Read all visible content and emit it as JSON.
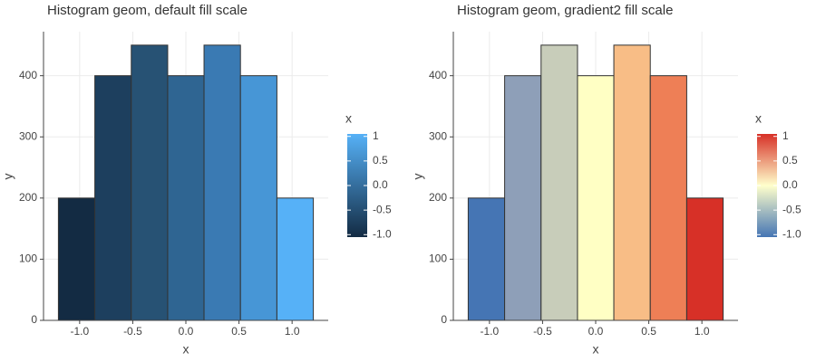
{
  "chart_data": [
    {
      "type": "histogram",
      "title": "Histogram geom, default fill scale",
      "x_label": "x",
      "y_label": "y",
      "bins": [
        -1.2,
        -0.857,
        -0.514,
        -0.171,
        0.171,
        0.514,
        0.857,
        1.2
      ],
      "values": [
        200,
        400,
        450,
        400,
        450,
        400,
        200
      ],
      "colors": [
        "#132b43",
        "#1d3f5e",
        "#275274",
        "#2f6592",
        "#3a7ab3",
        "#4796d6",
        "#56b1f7"
      ],
      "xlim": [
        -1.34,
        1.34
      ],
      "xticks": [
        {
          "value": -1,
          "label": "-1.0"
        },
        -0.5,
        {
          "value": 0,
          "label": "0.0"
        },
        0.5,
        {
          "value": 1,
          "label": "1.0"
        }
      ],
      "ylim": [
        0,
        472
      ],
      "yticks": [
        0,
        100,
        200,
        300,
        400
      ],
      "grid": true,
      "legend": {
        "title": "x",
        "colors": [
          "#132b43",
          "#56b1f7"
        ],
        "lim": [
          -1.05,
          1.05
        ],
        "ticks": [
          1,
          0.5,
          {
            "value": 0,
            "label": "0.0"
          },
          -0.5,
          {
            "value": -1,
            "label": "-1.0"
          }
        ]
      }
    },
    {
      "type": "histogram",
      "title": "Histogram geom, gradient2 fill scale",
      "x_label": "x",
      "y_label": "y",
      "bins": [
        -1.2,
        -0.857,
        -0.514,
        -0.171,
        0.171,
        0.514,
        0.857,
        1.2
      ],
      "values": [
        200,
        400,
        450,
        400,
        450,
        400,
        200
      ],
      "colors": [
        "#4575b4",
        "#8e9fb8",
        "#c8cdba",
        "#ffffc4",
        "#f8bd86",
        "#ee7f56",
        "#d73027"
      ],
      "xlim": [
        -1.34,
        1.34
      ],
      "xticks": [
        {
          "value": -1,
          "label": "-1.0"
        },
        -0.5,
        {
          "value": 0,
          "label": "0.0"
        },
        0.5,
        {
          "value": 1,
          "label": "1.0"
        }
      ],
      "ylim": [
        0,
        472
      ],
      "yticks": [
        0,
        100,
        200,
        300,
        400
      ],
      "grid": true,
      "legend": {
        "title": "x",
        "colors": [
          "#4575b4",
          "#ffffcc",
          "#d73027"
        ],
        "lim": [
          -1.05,
          1.05
        ],
        "ticks": [
          1,
          0.5,
          {
            "value": 0,
            "label": "0.0"
          },
          -0.5,
          {
            "value": -1,
            "label": "-1.0"
          }
        ]
      }
    }
  ]
}
